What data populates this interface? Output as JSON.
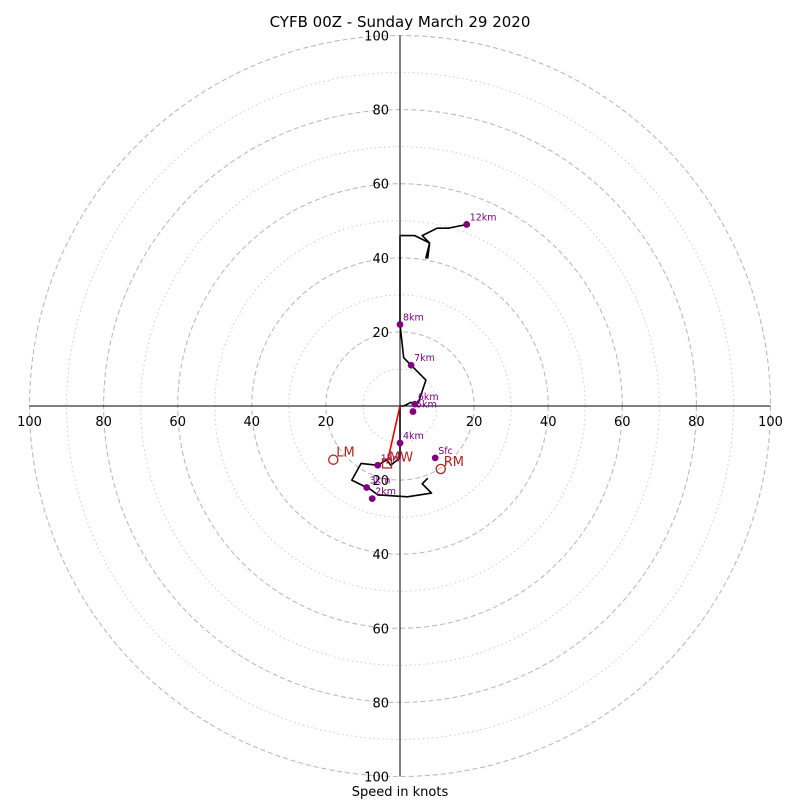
{
  "chart_data": {
    "type": "scatter",
    "subtype": "hodograph",
    "title": "CYFB 00Z - Sunday March 29 2020",
    "xlabel": "Speed in knots",
    "xlim": [
      -100,
      100
    ],
    "ylim": [
      -100,
      100
    ],
    "rings_dashed": [
      20,
      40,
      60,
      80,
      100
    ],
    "rings_dotted": [
      10,
      30,
      50,
      70,
      90
    ],
    "x_ticks": [
      "100",
      "80",
      "60",
      "40",
      "20",
      "20",
      "40",
      "60",
      "80",
      "100"
    ],
    "y_ticks": [
      "100",
      "80",
      "60",
      "40",
      "20",
      "20",
      "40",
      "60",
      "80",
      "100"
    ],
    "hodograph_trace": [
      [
        7.5,
        -19.5
      ],
      [
        6,
        -21
      ],
      [
        8.5,
        -23.5
      ],
      [
        2,
        -24.5
      ],
      [
        -6,
        -24
      ],
      [
        -8,
        -22.5
      ],
      [
        -13,
        -20
      ],
      [
        -10.5,
        -15.5
      ],
      [
        -6,
        -16
      ],
      [
        -3.5,
        -14.5
      ],
      [
        -2.5,
        -16
      ],
      [
        0,
        -14
      ],
      [
        0,
        -10
      ],
      [
        0,
        -5
      ],
      [
        0,
        0
      ],
      [
        1,
        0
      ],
      [
        3,
        1
      ],
      [
        4,
        0
      ],
      [
        5,
        1
      ],
      [
        7,
        7
      ],
      [
        3.5,
        10.5
      ],
      [
        1,
        13
      ],
      [
        0,
        22
      ],
      [
        0,
        37
      ],
      [
        0,
        46
      ],
      [
        4,
        46
      ],
      [
        8,
        44
      ],
      [
        7,
        40
      ],
      [
        7.5,
        40
      ],
      [
        8,
        44
      ],
      [
        6,
        46
      ],
      [
        10,
        48
      ],
      [
        13,
        48
      ],
      [
        18,
        49
      ]
    ],
    "height_markers": [
      {
        "label": "Sfc",
        "x": 9.5,
        "y": -14
      },
      {
        "label": "1km",
        "x": -6,
        "y": -16
      },
      {
        "label": "2km",
        "x": -7.5,
        "y": -25
      },
      {
        "label": "3km",
        "x": -9,
        "y": -22
      },
      {
        "label": "4km",
        "x": 0,
        "y": -10
      },
      {
        "label": "5km",
        "x": 3.5,
        "y": -1.5
      },
      {
        "label": "6km",
        "x": 4,
        "y": 0.5
      },
      {
        "label": "7km",
        "x": 3,
        "y": 11
      },
      {
        "label": "8km",
        "x": 0,
        "y": 22
      },
      {
        "label": "12km",
        "x": 18,
        "y": 49
      }
    ],
    "storm_motion": [
      {
        "label": "RM",
        "x": 11,
        "y": -17
      },
      {
        "label": "LM",
        "x": -18,
        "y": -14.5
      }
    ],
    "mean_wind": {
      "label": "MW",
      "x": -3.5,
      "y": -15.5
    },
    "shear_vector": {
      "from": [
        0,
        0
      ],
      "to": [
        -3.5,
        -15.5
      ]
    },
    "colors": {
      "trace": "#000000",
      "markers": "#800080",
      "storm_motion": "#b22222",
      "shear_vector": "#e00000",
      "rings": "#bbbbbb",
      "axes": "#000000"
    }
  }
}
